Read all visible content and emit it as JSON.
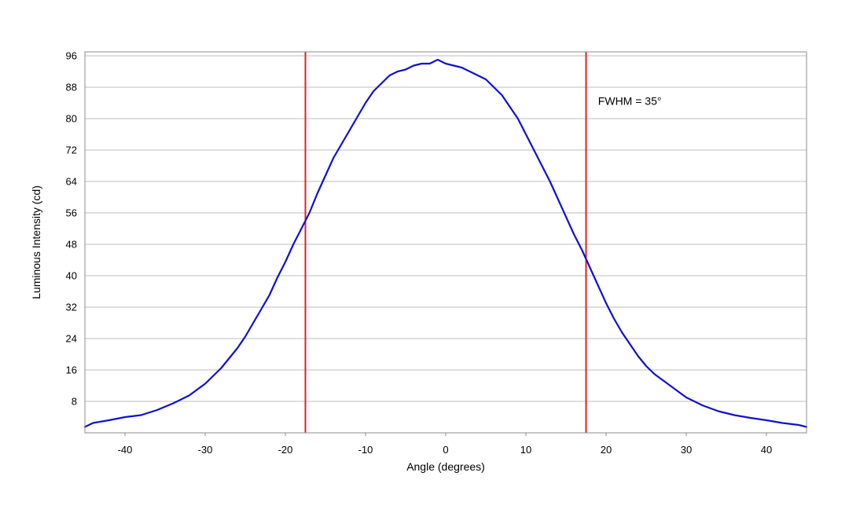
{
  "chart_data": {
    "type": "line",
    "title": "",
    "xlabel": "Angle (degrees)",
    "ylabel": "Luminous Intensity (cd)",
    "xlim": [
      -45,
      45
    ],
    "ylim": [
      0,
      97
    ],
    "x_ticks": [
      -40,
      -30,
      -20,
      -10,
      0,
      10,
      20,
      30,
      40
    ],
    "y_ticks": [
      8,
      16,
      24,
      32,
      40,
      48,
      56,
      64,
      72,
      80,
      88,
      96
    ],
    "grid": {
      "horizontal": true,
      "vertical": false
    },
    "legend": "none",
    "series": [
      {
        "color": "#1010d0",
        "x": [
          -45,
          -44,
          -42,
          -40,
          -38,
          -36,
          -34,
          -32,
          -30,
          -28,
          -26,
          -25,
          -24,
          -23,
          -22,
          -21,
          -20,
          -19,
          -18,
          -17,
          -16,
          -15,
          -14,
          -13,
          -12,
          -11,
          -10,
          -9,
          -8,
          -7,
          -6,
          -5,
          -4,
          -3,
          -2,
          -1,
          0,
          1,
          2,
          3,
          4,
          5,
          6,
          7,
          8,
          9,
          10,
          11,
          12,
          13,
          14,
          15,
          16,
          17,
          18,
          19,
          20,
          21,
          22,
          23,
          24,
          25,
          26,
          28,
          30,
          32,
          34,
          36,
          38,
          40,
          42,
          44,
          45
        ],
        "y": [
          1.5,
          2.5,
          3.2,
          4.0,
          4.5,
          5.8,
          7.5,
          9.5,
          12.5,
          16.5,
          21.5,
          24.5,
          28.0,
          31.5,
          35.0,
          39.5,
          43.5,
          48.0,
          52.0,
          56.0,
          61.0,
          65.5,
          70.0,
          73.5,
          77.0,
          80.5,
          84.0,
          87.0,
          89.0,
          91.0,
          92.0,
          92.5,
          93.5,
          94.0,
          94.0,
          95.0,
          94.0,
          93.5,
          93.0,
          92.0,
          91.0,
          90.0,
          88.0,
          86.0,
          83.0,
          80.0,
          76.0,
          72.0,
          68.0,
          64.0,
          59.5,
          55.0,
          50.5,
          46.5,
          42.0,
          37.5,
          33.0,
          29.0,
          25.5,
          22.5,
          19.5,
          17.0,
          15.0,
          12.0,
          9.0,
          7.0,
          5.5,
          4.5,
          3.8,
          3.2,
          2.5,
          2.0,
          1.5
        ]
      }
    ],
    "reference_lines": [
      {
        "axis": "x",
        "value": -17.5,
        "color": "#e02020"
      },
      {
        "axis": "x",
        "value": 17.5,
        "color": "#e02020"
      }
    ],
    "annotations": [
      {
        "text": "FWHM = 35°",
        "x": 19,
        "y": 83.5
      }
    ]
  }
}
